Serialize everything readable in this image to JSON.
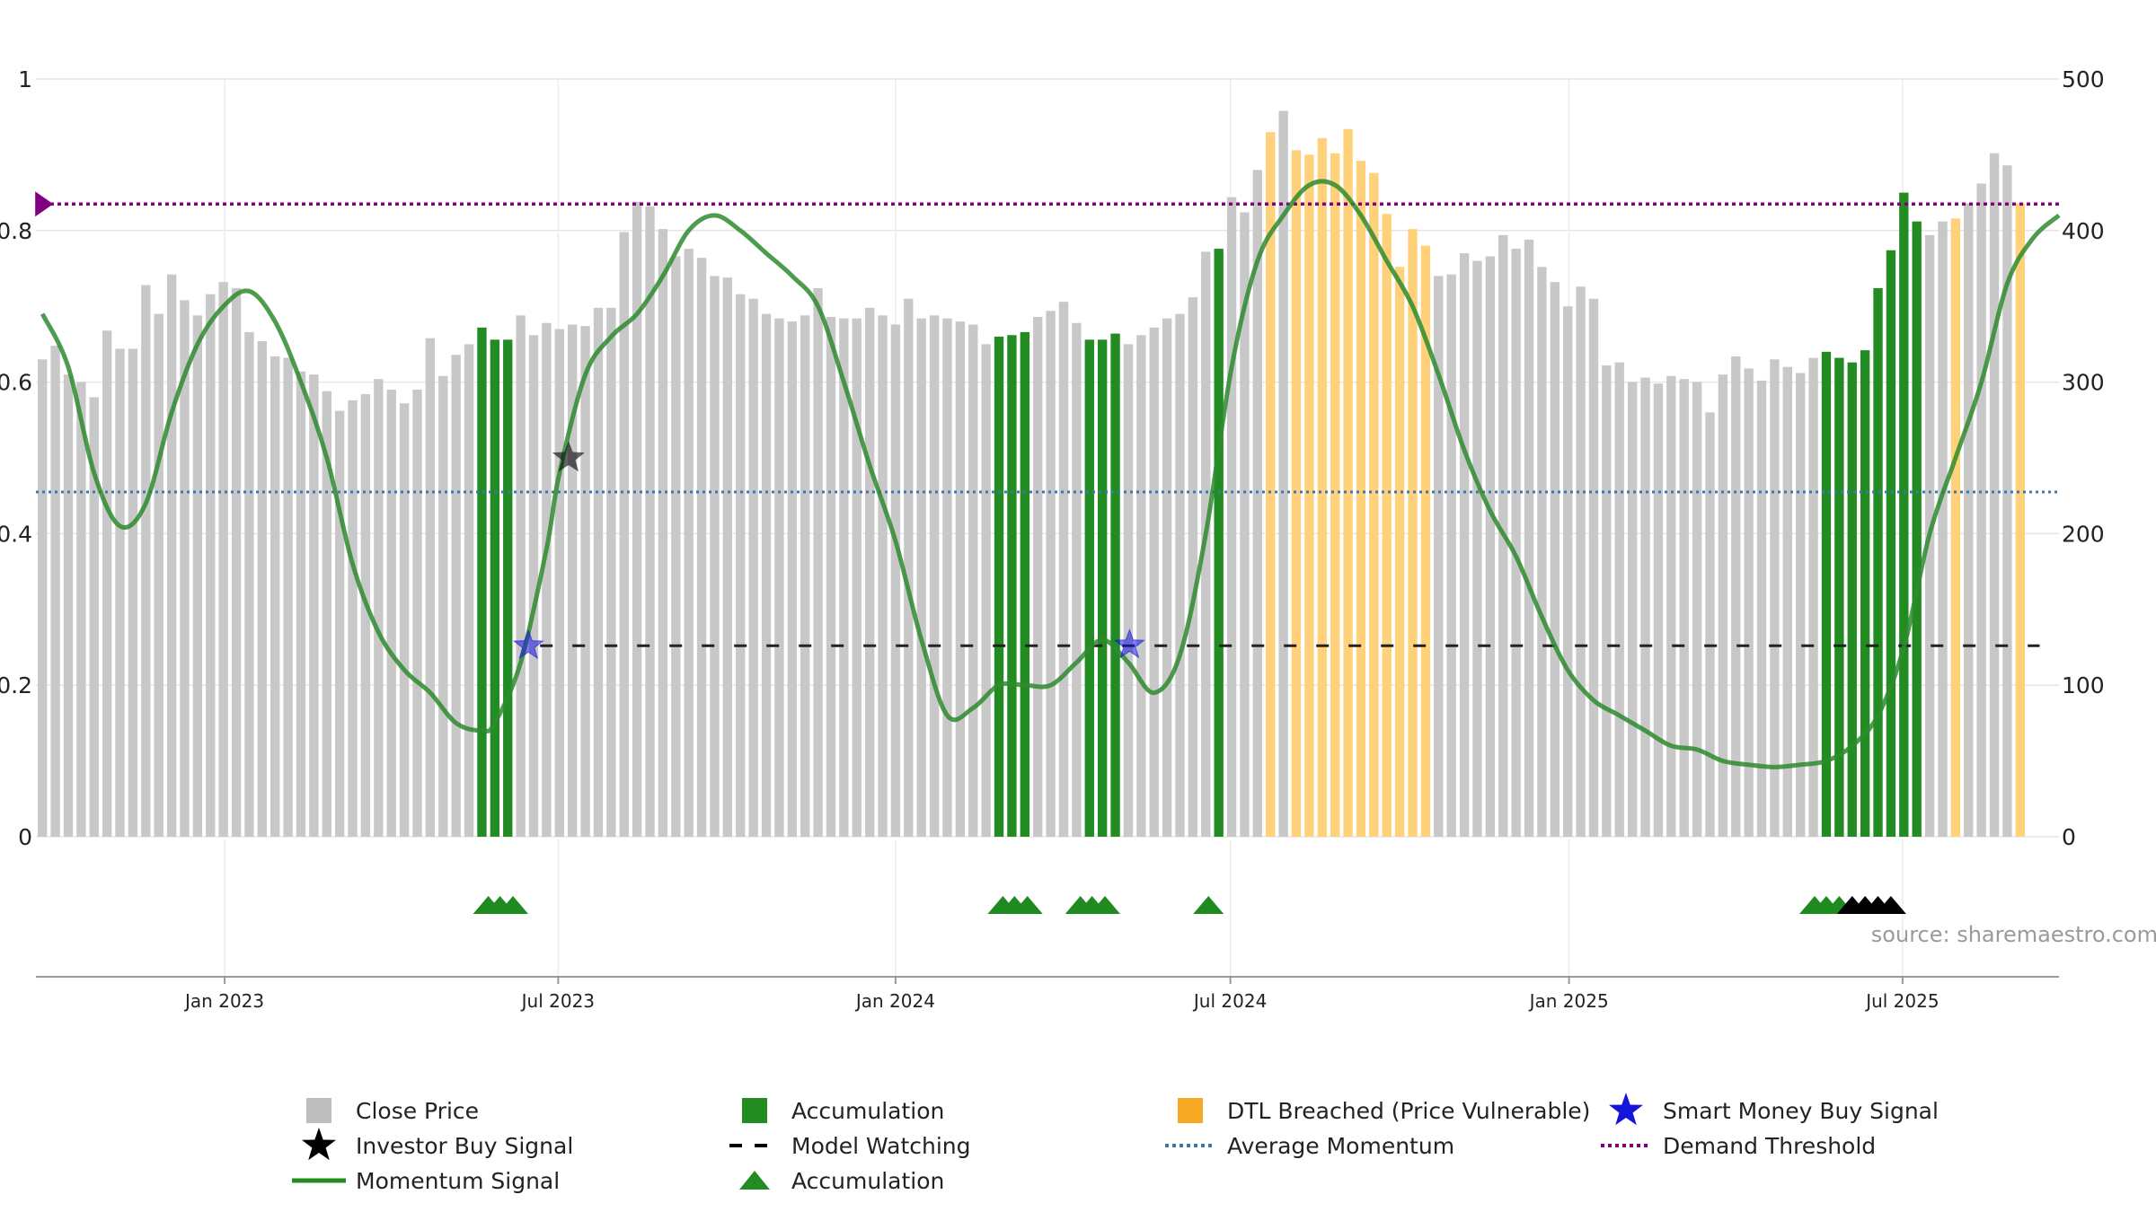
{
  "chart_data": {
    "type": "bar",
    "source_text": "source: sharemaestro.com",
    "left_axis": {
      "range": [
        0,
        1
      ],
      "ticks": [
        "0",
        "0.2",
        "0.4",
        "0.6",
        "0.8",
        "1"
      ]
    },
    "right_axis": {
      "range": [
        0,
        500
      ],
      "ticks": [
        "0",
        "100",
        "200",
        "300",
        "400",
        "500"
      ]
    },
    "x_ticks": [
      {
        "label": "Jan 2023",
        "index": 14.1
      },
      {
        "label": "Jul 2023",
        "index": 39.9
      },
      {
        "label": "Jan 2024",
        "index": 66.0
      },
      {
        "label": "Jul 2024",
        "index": 91.9
      },
      {
        "label": "Jan 2025",
        "index": 118.1
      },
      {
        "label": "Jul 2025",
        "index": 143.9
      }
    ],
    "x_range": [
      -0.5,
      156
    ],
    "grid": true,
    "close_prices": [
      315,
      324,
      305,
      300,
      290,
      334,
      322,
      322,
      364,
      345,
      371,
      354,
      344,
      358,
      366,
      362,
      333,
      327,
      317,
      316,
      307,
      305,
      294,
      281,
      288,
      292,
      302,
      295,
      286,
      295,
      329,
      304,
      318,
      325,
      336,
      328,
      328,
      344,
      331,
      339,
      335,
      338,
      337,
      349,
      349,
      399,
      419,
      416,
      401,
      383,
      388,
      382,
      370,
      369,
      358,
      355,
      345,
      342,
      340,
      344,
      362,
      343,
      342,
      342,
      349,
      344,
      338,
      355,
      342,
      344,
      342,
      340,
      338,
      325,
      330,
      331,
      333,
      343,
      347,
      353,
      339,
      328,
      328,
      332,
      325,
      331,
      336,
      342,
      345,
      356,
      386,
      388,
      422,
      412,
      440,
      465,
      479,
      453,
      450,
      461,
      451,
      467,
      446,
      438,
      411,
      376,
      401,
      390,
      370,
      371,
      385,
      380,
      383,
      397,
      388,
      394,
      376,
      366,
      350,
      363,
      355,
      311,
      313,
      300,
      303,
      299,
      304,
      302,
      300,
      280,
      305,
      317,
      309,
      301,
      315,
      310,
      306,
      316,
      320,
      316,
      313,
      321,
      362,
      387,
      425,
      406,
      397,
      406,
      408,
      418,
      431,
      451,
      443,
      418
    ],
    "bar_colors": [
      "gray",
      "gray",
      "gray",
      "gray",
      "gray",
      "gray",
      "gray",
      "gray",
      "gray",
      "gray",
      "gray",
      "gray",
      "gray",
      "gray",
      "gray",
      "gray",
      "gray",
      "gray",
      "gray",
      "gray",
      "gray",
      "gray",
      "gray",
      "gray",
      "gray",
      "gray",
      "gray",
      "gray",
      "gray",
      "gray",
      "gray",
      "gray",
      "gray",
      "gray",
      "green",
      "green",
      "green",
      "gray",
      "gray",
      "gray",
      "gray",
      "gray",
      "gray",
      "gray",
      "gray",
      "gray",
      "gray",
      "gray",
      "gray",
      "gray",
      "gray",
      "gray",
      "gray",
      "gray",
      "gray",
      "gray",
      "gray",
      "gray",
      "gray",
      "gray",
      "gray",
      "gray",
      "gray",
      "gray",
      "gray",
      "gray",
      "gray",
      "gray",
      "gray",
      "gray",
      "gray",
      "gray",
      "gray",
      "gray",
      "green",
      "green",
      "green",
      "gray",
      "gray",
      "gray",
      "gray",
      "green",
      "green",
      "green",
      "gray",
      "gray",
      "gray",
      "gray",
      "gray",
      "gray",
      "gray",
      "green",
      "gray",
      "gray",
      "gray",
      "orange",
      "gray",
      "orange",
      "orange",
      "orange",
      "orange",
      "orange",
      "orange",
      "orange",
      "orange",
      "orange",
      "orange",
      "orange",
      "gray",
      "gray",
      "gray",
      "gray",
      "gray",
      "gray",
      "gray",
      "gray",
      "gray",
      "gray",
      "gray",
      "gray",
      "gray",
      "gray",
      "gray",
      "gray",
      "gray",
      "gray",
      "gray",
      "gray",
      "gray",
      "gray",
      "gray",
      "gray",
      "gray",
      "gray",
      "gray",
      "gray",
      "gray",
      "gray",
      "green",
      "green",
      "green",
      "green",
      "green",
      "green",
      "green",
      "green",
      "gray",
      "gray",
      "orange",
      "gray",
      "gray",
      "gray",
      "gray",
      "orange",
      "orange",
      "orange",
      "orange",
      "orange"
    ],
    "momentum": [
      [
        0,
        0.69
      ],
      [
        2,
        0.62
      ],
      [
        4,
        0.48
      ],
      [
        6,
        0.41
      ],
      [
        8,
        0.44
      ],
      [
        10,
        0.56
      ],
      [
        12,
        0.65
      ],
      [
        14,
        0.7
      ],
      [
        16,
        0.72
      ],
      [
        18,
        0.68
      ],
      [
        20,
        0.6
      ],
      [
        22,
        0.5
      ],
      [
        24,
        0.36
      ],
      [
        26,
        0.27
      ],
      [
        28,
        0.22
      ],
      [
        30,
        0.19
      ],
      [
        32,
        0.15
      ],
      [
        34,
        0.14
      ],
      [
        35,
        0.15
      ],
      [
        37,
        0.23
      ],
      [
        39,
        0.38
      ],
      [
        40,
        0.48
      ],
      [
        42,
        0.61
      ],
      [
        44,
        0.66
      ],
      [
        46,
        0.69
      ],
      [
        48,
        0.74
      ],
      [
        50,
        0.8
      ],
      [
        52,
        0.82
      ],
      [
        54,
        0.8
      ],
      [
        56,
        0.77
      ],
      [
        58,
        0.74
      ],
      [
        60,
        0.7
      ],
      [
        62,
        0.6
      ],
      [
        64,
        0.49
      ],
      [
        66,
        0.39
      ],
      [
        68,
        0.26
      ],
      [
        70,
        0.16
      ],
      [
        72,
        0.17
      ],
      [
        74,
        0.2
      ],
      [
        76,
        0.2
      ],
      [
        78,
        0.2
      ],
      [
        80,
        0.23
      ],
      [
        82,
        0.26
      ],
      [
        84,
        0.23
      ],
      [
        86,
        0.19
      ],
      [
        88,
        0.24
      ],
      [
        90,
        0.4
      ],
      [
        92,
        0.62
      ],
      [
        94,
        0.76
      ],
      [
        96,
        0.82
      ],
      [
        98,
        0.86
      ],
      [
        100,
        0.86
      ],
      [
        102,
        0.82
      ],
      [
        104,
        0.76
      ],
      [
        106,
        0.7
      ],
      [
        108,
        0.61
      ],
      [
        110,
        0.51
      ],
      [
        112,
        0.43
      ],
      [
        114,
        0.37
      ],
      [
        116,
        0.29
      ],
      [
        118,
        0.22
      ],
      [
        120,
        0.18
      ],
      [
        122,
        0.16
      ],
      [
        124,
        0.14
      ],
      [
        126,
        0.12
      ],
      [
        128,
        0.115
      ],
      [
        130,
        0.1
      ],
      [
        132,
        0.095
      ],
      [
        134,
        0.092
      ],
      [
        136,
        0.095
      ],
      [
        138,
        0.1
      ],
      [
        140,
        0.12
      ],
      [
        142,
        0.16
      ],
      [
        144,
        0.25
      ],
      [
        146,
        0.4
      ],
      [
        148,
        0.5
      ],
      [
        150,
        0.6
      ],
      [
        152,
        0.73
      ],
      [
        154,
        0.79
      ],
      [
        156,
        0.82
      ]
    ],
    "average_momentum": 0.455,
    "demand_threshold": 0.835,
    "model_watching": {
      "y": 0.252,
      "from": 38.5,
      "to": 154.5
    },
    "smart_money_buy_signals": [
      {
        "x": 37.6,
        "y": 0.252
      },
      {
        "x": 84.1,
        "y": 0.253
      }
    ],
    "investor_buy_signals": [
      {
        "x": 40.7,
        "y": 0.5
      }
    ],
    "demand_marker": {
      "x": 0,
      "y": 0.835
    },
    "accumulation_triangles": [
      {
        "x": 34.5,
        "color": "green"
      },
      {
        "x": 35.4,
        "color": "green"
      },
      {
        "x": 36.4,
        "color": "green"
      },
      {
        "x": 74.3,
        "color": "green"
      },
      {
        "x": 75.2,
        "color": "green"
      },
      {
        "x": 76.2,
        "color": "green"
      },
      {
        "x": 80.3,
        "color": "green"
      },
      {
        "x": 81.2,
        "color": "green"
      },
      {
        "x": 82.2,
        "color": "green"
      },
      {
        "x": 90.2,
        "color": "green"
      },
      {
        "x": 137.1,
        "color": "green"
      },
      {
        "x": 138.0,
        "color": "green"
      },
      {
        "x": 139.0,
        "color": "green"
      },
      {
        "x": 140.0,
        "color": "black"
      },
      {
        "x": 141.0,
        "color": "black"
      },
      {
        "x": 142.0,
        "color": "black"
      },
      {
        "x": 143.0,
        "color": "black"
      }
    ],
    "colors": {
      "close_price": "#c8c8c8",
      "accumulation": "#228b22",
      "dtl_breached": "#ffd17a",
      "momentum": "#2e8b2e",
      "smart_money": "#1414dc",
      "average_momentum": "#3b78b0",
      "demand_threshold": "#800080"
    },
    "legend": [
      {
        "label": "Close Price",
        "symbol": "square",
        "color": "#bdbdbd"
      },
      {
        "label": "Accumulation",
        "symbol": "square",
        "color": "#228b22"
      },
      {
        "label": "DTL Breached (Price Vulnerable)",
        "symbol": "square",
        "color": "#f7a823"
      },
      {
        "label": "Smart Money Buy Signal",
        "symbol": "star",
        "color": "#1414dc"
      },
      {
        "label": "Investor Buy Signal",
        "symbol": "star",
        "color": "#000000"
      },
      {
        "label": "Model Watching",
        "symbol": "dash",
        "color": "#000000"
      },
      {
        "label": "Average Momentum",
        "symbol": "dot",
        "color": "#3b78b0"
      },
      {
        "label": "Demand Threshold",
        "symbol": "dot",
        "color": "#800080"
      },
      {
        "label": "Momentum Signal",
        "symbol": "line",
        "color": "#228b22"
      },
      {
        "label": "Accumulation",
        "symbol": "triangle",
        "color": "#228b22"
      }
    ]
  }
}
